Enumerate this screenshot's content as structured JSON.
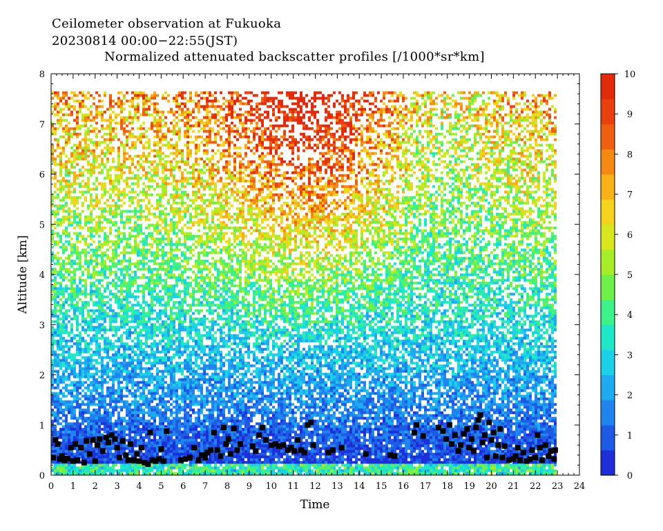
{
  "header": {
    "line1": "Ceilometer observation at Fukuoka",
    "line2": "20230814  00:00−22:55(JST)",
    "line3": "Normalized attenuated backscatter profiles [/1000*sr*km]"
  },
  "chart_data": {
    "type": "heatmap",
    "xlabel": "Time",
    "ylabel": "Altitude [km]",
    "xlim": [
      0,
      24
    ],
    "ylim": [
      0,
      8
    ],
    "x_ticks": [
      "0",
      "1",
      "2",
      "3",
      "4",
      "5",
      "6",
      "7",
      "8",
      "9",
      "10",
      "11",
      "12",
      "13",
      "14",
      "15",
      "16",
      "17",
      "18",
      "19",
      "20",
      "21",
      "22",
      "23",
      "24"
    ],
    "y_ticks": [
      "0",
      "1",
      "2",
      "3",
      "4",
      "5",
      "6",
      "7",
      "8"
    ],
    "data_time_range": [
      0,
      22.92
    ],
    "data_altitude_range": [
      0,
      7.65
    ],
    "colorbar": {
      "range": [
        0,
        10
      ],
      "ticks": [
        "0",
        "1",
        "2",
        "3",
        "4",
        "5",
        "6",
        "7",
        "8",
        "9",
        "10"
      ],
      "colors": [
        "#1d2fd8",
        "#1f5ae6",
        "#1f84ee",
        "#1eaaf0",
        "#1cd0e8",
        "#1ee8c8",
        "#3cf08a",
        "#6ef04a",
        "#a8ee28",
        "#d8e61e",
        "#f5d21c",
        "#f8b016",
        "#f48a12",
        "#ee6010",
        "#e8400e",
        "#e22a0c"
      ]
    },
    "cloud_base_marker_color": "#000000",
    "cloud_base_points": [
      [
        0.1,
        0.35
      ],
      [
        0.2,
        0.7
      ],
      [
        0.3,
        0.62
      ],
      [
        0.4,
        0.32
      ],
      [
        0.5,
        0.38
      ],
      [
        0.6,
        0.3
      ],
      [
        0.75,
        0.33
      ],
      [
        0.9,
        0.55
      ],
      [
        1.0,
        0.28
      ],
      [
        1.1,
        0.62
      ],
      [
        1.2,
        0.3
      ],
      [
        1.35,
        0.55
      ],
      [
        1.5,
        0.25
      ],
      [
        1.6,
        0.68
      ],
      [
        1.75,
        0.42
      ],
      [
        1.9,
        0.7
      ],
      [
        2.0,
        0.28
      ],
      [
        2.1,
        0.6
      ],
      [
        2.2,
        0.72
      ],
      [
        2.35,
        0.48
      ],
      [
        2.5,
        0.75
      ],
      [
        2.6,
        0.65
      ],
      [
        2.75,
        0.8
      ],
      [
        2.9,
        0.72
      ],
      [
        3.0,
        0.55
      ],
      [
        3.1,
        0.35
      ],
      [
        3.25,
        0.68
      ],
      [
        3.4,
        0.4
      ],
      [
        3.5,
        0.3
      ],
      [
        3.6,
        0.62
      ],
      [
        3.75,
        0.3
      ],
      [
        3.9,
        0.42
      ],
      [
        4.0,
        0.28
      ],
      [
        4.1,
        0.55
      ],
      [
        4.25,
        0.25
      ],
      [
        4.4,
        0.22
      ],
      [
        4.5,
        0.85
      ],
      [
        4.6,
        0.3
      ],
      [
        4.75,
        0.28
      ],
      [
        4.9,
        0.32
      ],
      [
        5.0,
        0.52
      ],
      [
        5.1,
        0.28
      ],
      [
        5.25,
        0.88
      ],
      [
        5.9,
        0.3
      ],
      [
        6.1,
        0.32
      ],
      [
        6.3,
        0.35
      ],
      [
        6.5,
        0.55
      ],
      [
        6.7,
        0.3
      ],
      [
        6.85,
        0.4
      ],
      [
        7.0,
        0.35
      ],
      [
        7.1,
        0.45
      ],
      [
        7.25,
        0.5
      ],
      [
        7.4,
        0.85
      ],
      [
        7.55,
        0.5
      ],
      [
        7.7,
        0.38
      ],
      [
        7.85,
        0.95
      ],
      [
        7.95,
        0.62
      ],
      [
        8.05,
        0.72
      ],
      [
        8.15,
        0.42
      ],
      [
        8.3,
        0.93
      ],
      [
        8.45,
        0.5
      ],
      [
        8.6,
        0.62
      ],
      [
        9.15,
        0.58
      ],
      [
        9.3,
        0.48
      ],
      [
        9.45,
        0.8
      ],
      [
        9.6,
        0.95
      ],
      [
        9.75,
        0.7
      ],
      [
        10.0,
        0.6
      ],
      [
        10.2,
        0.62
      ],
      [
        10.35,
        0.58
      ],
      [
        10.55,
        0.6
      ],
      [
        10.75,
        0.5
      ],
      [
        10.9,
        0.55
      ],
      [
        11.05,
        0.48
      ],
      [
        11.2,
        0.7
      ],
      [
        11.35,
        0.5
      ],
      [
        11.5,
        0.45
      ],
      [
        11.65,
        1.0
      ],
      [
        11.8,
        1.05
      ],
      [
        11.9,
        0.6
      ],
      [
        12.6,
        0.45
      ],
      [
        12.8,
        0.5
      ],
      [
        13.2,
        0.55
      ],
      [
        14.3,
        0.42
      ],
      [
        15.4,
        0.4
      ],
      [
        15.6,
        0.38
      ],
      [
        16.5,
        0.85
      ],
      [
        16.6,
        1.0
      ],
      [
        16.9,
        0.78
      ],
      [
        17.6,
        0.95
      ],
      [
        17.8,
        0.88
      ],
      [
        17.95,
        0.72
      ],
      [
        18.1,
        1.0
      ],
      [
        18.2,
        0.62
      ],
      [
        18.35,
        0.8
      ],
      [
        18.5,
        0.48
      ],
      [
        18.6,
        0.6
      ],
      [
        18.75,
        0.82
      ],
      [
        18.9,
        0.92
      ],
      [
        19.0,
        0.55
      ],
      [
        19.1,
        0.72
      ],
      [
        19.2,
        0.48
      ],
      [
        19.3,
        0.95
      ],
      [
        19.4,
        1.1
      ],
      [
        19.5,
        1.2
      ],
      [
        19.6,
        0.65
      ],
      [
        19.7,
        0.8
      ],
      [
        19.8,
        0.35
      ],
      [
        19.9,
        1.05
      ],
      [
        20.0,
        0.7
      ],
      [
        20.1,
        0.85
      ],
      [
        20.2,
        0.38
      ],
      [
        20.3,
        0.6
      ],
      [
        20.4,
        0.92
      ],
      [
        20.5,
        0.35
      ],
      [
        20.6,
        0.58
      ],
      [
        20.8,
        0.3
      ],
      [
        21.0,
        0.32
      ],
      [
        21.1,
        0.38
      ],
      [
        21.2,
        0.55
      ],
      [
        21.3,
        0.3
      ],
      [
        21.45,
        0.45
      ],
      [
        21.6,
        0.28
      ],
      [
        21.75,
        0.32
      ],
      [
        21.85,
        0.5
      ],
      [
        22.0,
        0.35
      ],
      [
        22.1,
        0.8
      ],
      [
        22.2,
        0.55
      ],
      [
        22.3,
        0.3
      ],
      [
        22.45,
        0.6
      ],
      [
        22.6,
        0.38
      ],
      [
        22.7,
        0.48
      ],
      [
        22.85,
        0.32
      ],
      [
        22.9,
        0.5
      ]
    ]
  }
}
